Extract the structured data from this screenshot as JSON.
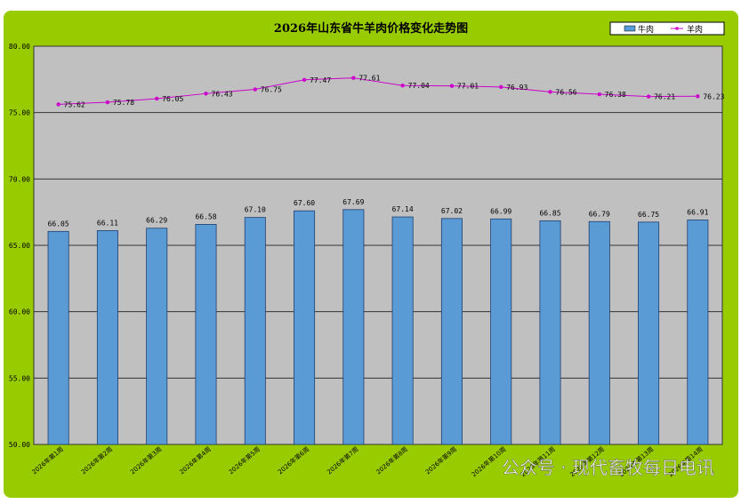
{
  "chart_data": {
    "type": "bar",
    "title": "2026年山东省牛羊肉价格变化走势图",
    "categories": [
      "2026年第1周",
      "2026年第2周",
      "2026年第3周",
      "2026年第4周",
      "2026年第5周",
      "2026年第6周",
      "2026年第7周",
      "2026年第8周",
      "2026年第9周",
      "2026年第10周",
      "2026年第11周",
      "2026年第12周",
      "2026年第13周",
      "2026年第14周"
    ],
    "series": [
      {
        "name": "牛肉",
        "type": "bar",
        "color": "#5b9bd5",
        "values": [
          66.05,
          66.11,
          66.29,
          66.58,
          67.1,
          67.6,
          67.69,
          67.14,
          67.02,
          66.99,
          66.85,
          66.79,
          66.75,
          66.91
        ]
      },
      {
        "name": "羊肉",
        "type": "line",
        "color": "#cc00cc",
        "values": [
          75.62,
          75.78,
          76.05,
          76.43,
          76.75,
          77.47,
          77.61,
          77.04,
          77.01,
          76.93,
          76.56,
          76.38,
          76.21,
          76.23
        ]
      }
    ],
    "yticks": [
      "50.00",
      "55.00",
      "60.00",
      "65.00",
      "70.00",
      "75.00",
      "80.00"
    ],
    "ylim": [
      50,
      80
    ],
    "grid": true,
    "legend_position": "top-right",
    "background": "#c0c0c0",
    "frame_color": "#99cc00"
  },
  "watermark": "公众号 · 现代畜牧每日电讯"
}
